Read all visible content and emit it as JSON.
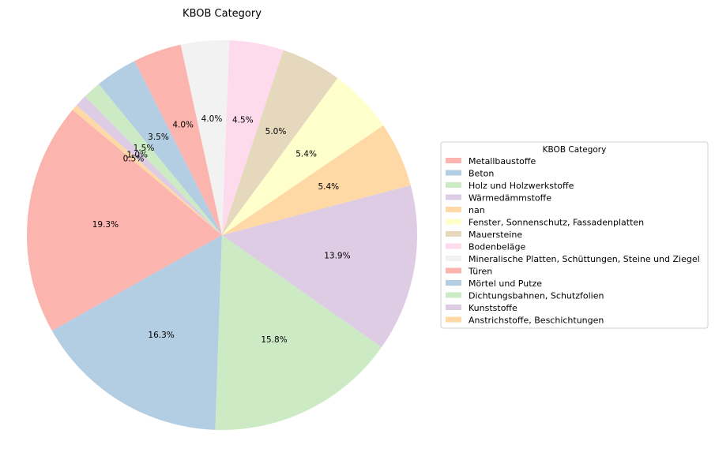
{
  "chart_data": {
    "type": "pie",
    "title": "KBOB Category",
    "start_angle_deg": 140,
    "direction": "counterclockwise",
    "legend": {
      "title": "KBOB Category",
      "placement": "right"
    },
    "slices": [
      {
        "label": "Metallbaustoffe",
        "value": 19.3,
        "pct_label": "19.3%",
        "color": "#fbb4ae"
      },
      {
        "label": "Beton",
        "value": 16.3,
        "pct_label": "16.3%",
        "color": "#b3cde3"
      },
      {
        "label": "Holz und Holzwerkstoffe",
        "value": 15.8,
        "pct_label": "15.8%",
        "color": "#ccebc5"
      },
      {
        "label": "Wärmedämmstoffe",
        "value": 13.9,
        "pct_label": "13.9%",
        "color": "#decbe4"
      },
      {
        "label": "nan",
        "value": 5.4,
        "pct_label": "5.4%",
        "color": "#fed9a6"
      },
      {
        "label": "Fenster, Sonnenschutz, Fassadenplatten",
        "value": 5.4,
        "pct_label": "5.4%",
        "color": "#ffffcc"
      },
      {
        "label": "Mauersteine",
        "value": 5.0,
        "pct_label": "5.0%",
        "color": "#e5d8bd"
      },
      {
        "label": "Bodenbeläge",
        "value": 4.5,
        "pct_label": "4.5%",
        "color": "#fddaec"
      },
      {
        "label": "Mineralische Platten, Schüttungen, Steine und Ziegel",
        "value": 4.0,
        "pct_label": "4.0%",
        "color": "#f2f2f2"
      },
      {
        "label": "Türen",
        "value": 4.0,
        "pct_label": "4.0%",
        "color": "#fbb4ae"
      },
      {
        "label": "Mörtel und Putze",
        "value": 3.5,
        "pct_label": "3.5%",
        "color": "#b3cde3"
      },
      {
        "label": "Dichtungsbahnen, Schutzfolien",
        "value": 1.5,
        "pct_label": "1.5%",
        "color": "#ccebc5"
      },
      {
        "label": "Kunststoffe",
        "value": 1.0,
        "pct_label": "1.0%",
        "color": "#decbe4"
      },
      {
        "label": "Anstrichstoffe, Beschichtungen",
        "value": 0.5,
        "pct_label": "0.5%",
        "color": "#fed9a6"
      }
    ]
  }
}
